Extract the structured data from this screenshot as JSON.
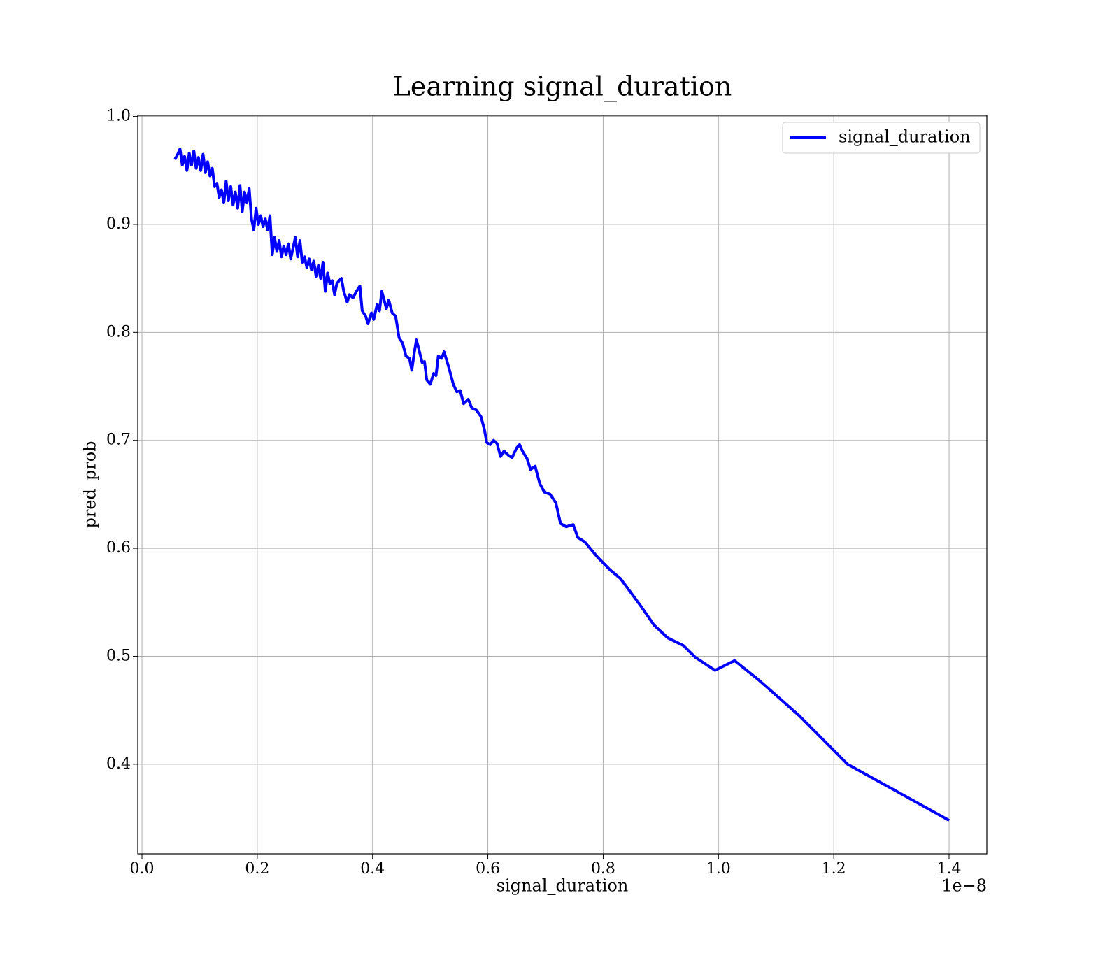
{
  "chart_data": {
    "type": "line",
    "title": "Learning signal_duration",
    "x_label": "signal_duration",
    "y_label": "pred_prob",
    "x_offset_label": "1e−8",
    "x": [
      0.057,
      0.062,
      0.066,
      0.07,
      0.074,
      0.078,
      0.082,
      0.086,
      0.09,
      0.094,
      0.098,
      0.102,
      0.106,
      0.11,
      0.114,
      0.118,
      0.122,
      0.126,
      0.13,
      0.134,
      0.138,
      0.142,
      0.146,
      0.15,
      0.154,
      0.158,
      0.162,
      0.166,
      0.17,
      0.174,
      0.178,
      0.182,
      0.186,
      0.19,
      0.194,
      0.198,
      0.202,
      0.206,
      0.21,
      0.214,
      0.218,
      0.222,
      0.226,
      0.23,
      0.234,
      0.238,
      0.242,
      0.246,
      0.25,
      0.254,
      0.258,
      0.262,
      0.266,
      0.27,
      0.274,
      0.278,
      0.282,
      0.286,
      0.29,
      0.294,
      0.298,
      0.302,
      0.306,
      0.31,
      0.314,
      0.318,
      0.322,
      0.326,
      0.33,
      0.334,
      0.338,
      0.342,
      0.346,
      0.35,
      0.356,
      0.36,
      0.366,
      0.372,
      0.378,
      0.382,
      0.388,
      0.392,
      0.398,
      0.402,
      0.408,
      0.412,
      0.416,
      0.42,
      0.424,
      0.428,
      0.434,
      0.44,
      0.446,
      0.452,
      0.458,
      0.464,
      0.468,
      0.472,
      0.476,
      0.48,
      0.486,
      0.49,
      0.494,
      0.5,
      0.506,
      0.51,
      0.514,
      0.52,
      0.524,
      0.532,
      0.54,
      0.546,
      0.552,
      0.558,
      0.566,
      0.572,
      0.58,
      0.588,
      0.594,
      0.598,
      0.604,
      0.61,
      0.616,
      0.622,
      0.628,
      0.636,
      0.642,
      0.65,
      0.655,
      0.66,
      0.668,
      0.674,
      0.682,
      0.69,
      0.698,
      0.708,
      0.718,
      0.726,
      0.736,
      0.748,
      0.756,
      0.768,
      0.79,
      0.812,
      0.83,
      0.866,
      0.888,
      0.912,
      0.939,
      0.96,
      0.994,
      1.028,
      1.07,
      1.14,
      1.224,
      1.4
    ],
    "series": [
      {
        "name": "signal_duration",
        "color": "#0000ff",
        "values": [
          0.96,
          0.965,
          0.97,
          0.955,
          0.963,
          0.95,
          0.966,
          0.955,
          0.968,
          0.952,
          0.962,
          0.95,
          0.965,
          0.948,
          0.958,
          0.945,
          0.952,
          0.935,
          0.938,
          0.925,
          0.932,
          0.92,
          0.94,
          0.922,
          0.935,
          0.918,
          0.93,
          0.915,
          0.936,
          0.912,
          0.93,
          0.92,
          0.933,
          0.905,
          0.895,
          0.915,
          0.9,
          0.908,
          0.898,
          0.905,
          0.895,
          0.908,
          0.872,
          0.888,
          0.875,
          0.885,
          0.87,
          0.88,
          0.872,
          0.882,
          0.868,
          0.878,
          0.888,
          0.87,
          0.885,
          0.865,
          0.87,
          0.86,
          0.868,
          0.858,
          0.866,
          0.852,
          0.862,
          0.85,
          0.865,
          0.838,
          0.855,
          0.845,
          0.848,
          0.835,
          0.845,
          0.848,
          0.85,
          0.838,
          0.828,
          0.835,
          0.832,
          0.838,
          0.843,
          0.82,
          0.815,
          0.808,
          0.818,
          0.812,
          0.826,
          0.82,
          0.838,
          0.83,
          0.822,
          0.83,
          0.818,
          0.815,
          0.795,
          0.79,
          0.778,
          0.776,
          0.765,
          0.78,
          0.793,
          0.785,
          0.772,
          0.773,
          0.756,
          0.752,
          0.762,
          0.76,
          0.778,
          0.776,
          0.782,
          0.768,
          0.752,
          0.745,
          0.746,
          0.734,
          0.738,
          0.73,
          0.728,
          0.722,
          0.71,
          0.698,
          0.696,
          0.7,
          0.697,
          0.685,
          0.69,
          0.686,
          0.684,
          0.693,
          0.696,
          0.69,
          0.683,
          0.673,
          0.676,
          0.66,
          0.652,
          0.65,
          0.642,
          0.623,
          0.62,
          0.622,
          0.61,
          0.606,
          0.592,
          0.58,
          0.572,
          0.546,
          0.529,
          0.517,
          0.51,
          0.499,
          0.487,
          0.496,
          0.478,
          0.445,
          0.4,
          0.348
        ]
      }
    ],
    "xlim": [
      -0.0073,
      1.4655
    ],
    "ylim": [
      0.317,
      1.001
    ],
    "xticks": [
      {
        "value": 0,
        "label": "0.0"
      },
      0.2,
      0.4,
      0.6,
      0.8,
      {
        "value": 1,
        "label": "1.0"
      },
      1.2,
      1.4
    ],
    "yticks": [
      0.4,
      0.5,
      0.6,
      0.7,
      0.8,
      0.9,
      {
        "value": 1,
        "label": "1.0"
      }
    ],
    "grid": true,
    "legend": "upper right"
  }
}
